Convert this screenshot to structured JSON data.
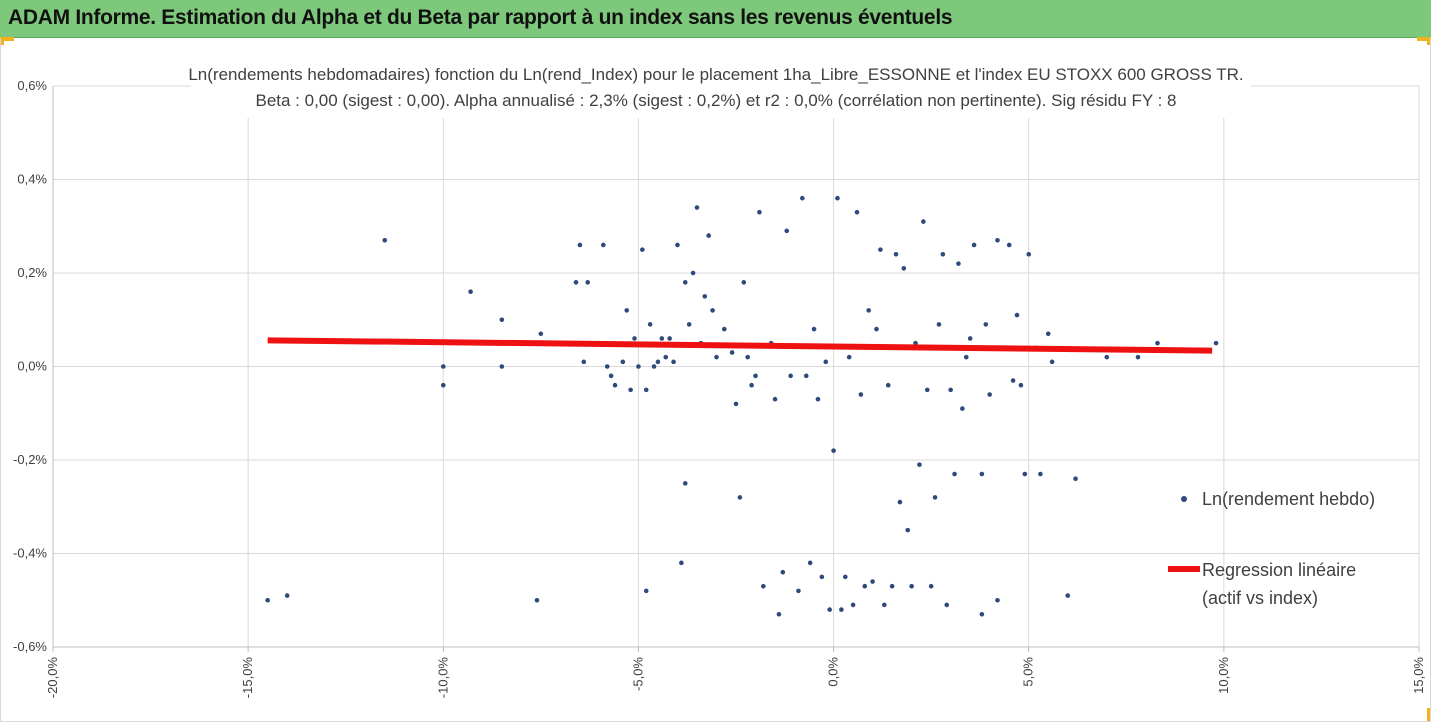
{
  "banner": {
    "title": "ADAM Informe. Estimation du Alpha et du Beta par rapport à un index sans les revenus éventuels",
    "background": "#7ec87b",
    "corner_accent": "#f2b21c"
  },
  "chart_data": {
    "type": "scatter",
    "title": "Ln(rendements hebdomadaires) fonction du Ln(rend_Index) pour le placement 1ha_Libre_ESSONNE et l'index EU STOXX 600 GROSS TR.",
    "subtitle": "Beta : 0,00 (sigest : 0,00). Alpha annualisé : 2,3% (sigest : 0,2%) et r2 : 0,0% (corrélation non pertinente). Sig résidu FY : 8",
    "xlabel": "",
    "ylabel": "",
    "xlim": [
      -0.2,
      0.15
    ],
    "ylim": [
      -0.006,
      0.006
    ],
    "x_ticks": [
      "-20,0%",
      "-15,0%",
      "-10,0%",
      "-5,0%",
      "0,0%",
      "5,0%",
      "10,0%",
      "15,0%"
    ],
    "y_ticks": [
      "0,6%",
      "0,4%",
      "0,2%",
      "0,0%",
      "-0,2%",
      "-0,4%",
      "-0,6%"
    ],
    "grid": true,
    "legend_position": "right",
    "series": [
      {
        "name": "Ln(rendement hebdo)",
        "kind": "points",
        "color": "#2e4a7a",
        "points": [
          [
            -0.145,
            -0.005
          ],
          [
            -0.14,
            -0.0049
          ],
          [
            -0.115,
            0.0027
          ],
          [
            -0.1,
            0.0
          ],
          [
            -0.1,
            -0.0004
          ],
          [
            -0.093,
            0.0016
          ],
          [
            -0.085,
            0.001
          ],
          [
            -0.085,
            0.0
          ],
          [
            -0.076,
            -0.005
          ],
          [
            -0.075,
            0.0007
          ],
          [
            -0.072,
            0.0005
          ],
          [
            -0.066,
            0.0018
          ],
          [
            -0.065,
            0.0026
          ],
          [
            -0.064,
            0.0001
          ],
          [
            -0.063,
            0.0018
          ],
          [
            -0.06,
            0.0005
          ],
          [
            -0.059,
            0.0026
          ],
          [
            -0.058,
            0.0
          ],
          [
            -0.057,
            -0.0002
          ],
          [
            -0.056,
            -0.0004
          ],
          [
            -0.054,
            0.0001
          ],
          [
            -0.053,
            0.0012
          ],
          [
            -0.052,
            -0.0005
          ],
          [
            -0.051,
            0.0006
          ],
          [
            -0.05,
            0.0
          ],
          [
            -0.049,
            0.0025
          ],
          [
            -0.048,
            -0.0005
          ],
          [
            -0.048,
            -0.0048
          ],
          [
            -0.047,
            0.0009
          ],
          [
            -0.046,
            0.0
          ],
          [
            -0.045,
            0.0001
          ],
          [
            -0.044,
            0.0006
          ],
          [
            -0.043,
            0.0002
          ],
          [
            -0.042,
            0.0006
          ],
          [
            -0.041,
            0.0001
          ],
          [
            -0.04,
            0.0026
          ],
          [
            -0.039,
            -0.0042
          ],
          [
            -0.038,
            0.0018
          ],
          [
            -0.038,
            -0.0025
          ],
          [
            -0.037,
            0.0009
          ],
          [
            -0.036,
            0.002
          ],
          [
            -0.035,
            0.0034
          ],
          [
            -0.034,
            0.0005
          ],
          [
            -0.033,
            0.0015
          ],
          [
            -0.032,
            0.0028
          ],
          [
            -0.031,
            0.0012
          ],
          [
            -0.03,
            0.0002
          ],
          [
            -0.028,
            0.0008
          ],
          [
            -0.026,
            0.0003
          ],
          [
            -0.025,
            -0.0008
          ],
          [
            -0.024,
            -0.0028
          ],
          [
            -0.023,
            0.0018
          ],
          [
            -0.022,
            0.0002
          ],
          [
            -0.021,
            -0.0004
          ],
          [
            -0.02,
            -0.0002
          ],
          [
            -0.019,
            0.0033
          ],
          [
            -0.018,
            -0.0047
          ],
          [
            -0.016,
            0.0005
          ],
          [
            -0.015,
            -0.0007
          ],
          [
            -0.014,
            -0.0053
          ],
          [
            -0.013,
            -0.0044
          ],
          [
            -0.012,
            0.0029
          ],
          [
            -0.011,
            -0.0002
          ],
          [
            -0.009,
            -0.0048
          ],
          [
            -0.008,
            0.0036
          ],
          [
            -0.007,
            -0.0002
          ],
          [
            -0.006,
            -0.0042
          ],
          [
            -0.005,
            0.0008
          ],
          [
            -0.004,
            -0.0007
          ],
          [
            -0.003,
            -0.0045
          ],
          [
            -0.002,
            0.0001
          ],
          [
            -0.001,
            -0.0052
          ],
          [
            0.0,
            -0.0018
          ],
          [
            0.001,
            0.0036
          ],
          [
            0.002,
            -0.0052
          ],
          [
            0.003,
            -0.0045
          ],
          [
            0.004,
            0.0002
          ],
          [
            0.005,
            -0.0051
          ],
          [
            0.006,
            0.0033
          ],
          [
            0.007,
            -0.0006
          ],
          [
            0.008,
            -0.0047
          ],
          [
            0.009,
            0.0012
          ],
          [
            0.01,
            -0.0046
          ],
          [
            0.011,
            0.0008
          ],
          [
            0.012,
            0.0025
          ],
          [
            0.013,
            -0.0051
          ],
          [
            0.014,
            -0.0004
          ],
          [
            0.015,
            -0.0047
          ],
          [
            0.016,
            0.0024
          ],
          [
            0.017,
            -0.0029
          ],
          [
            0.018,
            0.0021
          ],
          [
            0.019,
            -0.0035
          ],
          [
            0.02,
            -0.0047
          ],
          [
            0.021,
            0.0005
          ],
          [
            0.022,
            -0.0021
          ],
          [
            0.023,
            0.0031
          ],
          [
            0.024,
            -0.0005
          ],
          [
            0.025,
            -0.0047
          ],
          [
            0.026,
            -0.0028
          ],
          [
            0.027,
            0.0009
          ],
          [
            0.028,
            0.0024
          ],
          [
            0.029,
            -0.0051
          ],
          [
            0.03,
            -0.0005
          ],
          [
            0.031,
            -0.0023
          ],
          [
            0.032,
            0.0022
          ],
          [
            0.033,
            -0.0009
          ],
          [
            0.034,
            0.0002
          ],
          [
            0.035,
            0.0006
          ],
          [
            0.036,
            0.0026
          ],
          [
            0.038,
            -0.0053
          ],
          [
            0.038,
            -0.0023
          ],
          [
            0.039,
            0.0009
          ],
          [
            0.04,
            -0.0006
          ],
          [
            0.042,
            0.0027
          ],
          [
            0.042,
            -0.005
          ],
          [
            0.044,
            0.0004
          ],
          [
            0.045,
            0.0026
          ],
          [
            0.046,
            -0.0003
          ],
          [
            0.047,
            0.0011
          ],
          [
            0.048,
            -0.0004
          ],
          [
            0.049,
            -0.0023
          ],
          [
            0.05,
            0.0024
          ],
          [
            0.052,
            0.0004
          ],
          [
            0.053,
            -0.0023
          ],
          [
            0.055,
            0.0007
          ],
          [
            0.056,
            0.0001
          ],
          [
            0.06,
            -0.0049
          ],
          [
            0.062,
            -0.0024
          ],
          [
            0.07,
            0.0002
          ],
          [
            0.078,
            0.0002
          ],
          [
            0.083,
            0.0005
          ],
          [
            0.098,
            0.0005
          ]
        ],
        "cluster_note": null
      },
      {
        "name": "Regression linéaire (actif vs index)",
        "kind": "line",
        "color": "#ee1111",
        "points": [
          [
            -0.145,
            0.00056
          ],
          [
            0.097,
            0.00034
          ]
        ]
      }
    ]
  },
  "legend": {
    "items": [
      {
        "label": "Ln(rendement hebdo)"
      },
      {
        "label_line1": "Regression linéaire",
        "label_line2": "(actif vs index)"
      }
    ]
  }
}
